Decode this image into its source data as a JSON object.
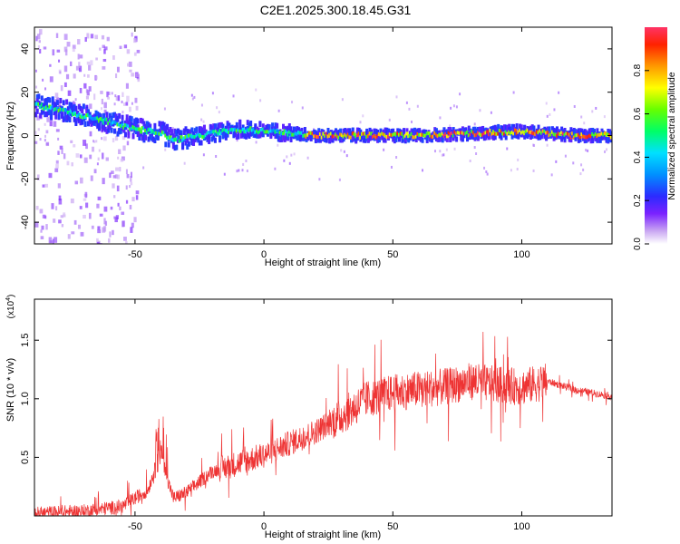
{
  "title": "C2E1.2025.300.18.45.G31",
  "chart_data": [
    {
      "type": "heatmap",
      "xlabel": "Height of straight line (km)",
      "ylabel": "Frequency (Hz)",
      "xlim": [
        -89,
        135
      ],
      "ylim": [
        -50,
        50
      ],
      "xticks": [
        -50,
        0,
        50,
        100
      ],
      "yticks": [
        -40,
        -20,
        0,
        20,
        40
      ],
      "ridge": {
        "x": [
          -89,
          -80,
          -70,
          -60,
          -50,
          -40,
          -35,
          -25,
          -10,
          0,
          10,
          20,
          40,
          60,
          80,
          100,
          110,
          120,
          135
        ],
        "y": [
          14,
          12,
          9,
          6,
          3,
          1,
          -2,
          0,
          3,
          2,
          1,
          0,
          0,
          0,
          1,
          2,
          1,
          0,
          0
        ]
      },
      "colorbar": {
        "label": "Normalized spectral amplitude",
        "range": [
          0.0,
          1.0
        ],
        "ticks": [
          "0.0",
          "0.2",
          "0.4",
          "0.6",
          "0.8"
        ],
        "tick_values": [
          0.0,
          0.2,
          0.4,
          0.6,
          0.8
        ]
      }
    },
    {
      "type": "line",
      "xlabel": "Height of straight line (km)",
      "ylabel": "SNR (10 * v/v)",
      "scale_label": "(x10",
      "scale_exp": "4",
      "scale_close": ")",
      "xlim": [
        -89,
        135
      ],
      "ylim": [
        0,
        1.85
      ],
      "xticks": [
        -50,
        0,
        50,
        100
      ],
      "yticks": [
        "0.5",
        "1.0",
        "1.5"
      ],
      "ytick_values": [
        0.5,
        1.0,
        1.5
      ],
      "color": "#ee3333",
      "series": [
        {
          "name": "SNR envelope",
          "x": [
            -89,
            -70,
            -55,
            -45,
            -40,
            -38,
            -35,
            -30,
            -20,
            -10,
            0,
            10,
            20,
            30,
            40,
            50,
            60,
            70,
            80,
            90,
            100,
            110,
            120,
            135
          ],
          "y": [
            0.02,
            0.04,
            0.08,
            0.22,
            0.55,
            0.35,
            0.15,
            0.2,
            0.38,
            0.45,
            0.52,
            0.62,
            0.72,
            0.85,
            1.0,
            1.05,
            1.08,
            1.1,
            1.15,
            1.12,
            1.1,
            1.15,
            1.08,
            1.02
          ]
        }
      ]
    }
  ]
}
